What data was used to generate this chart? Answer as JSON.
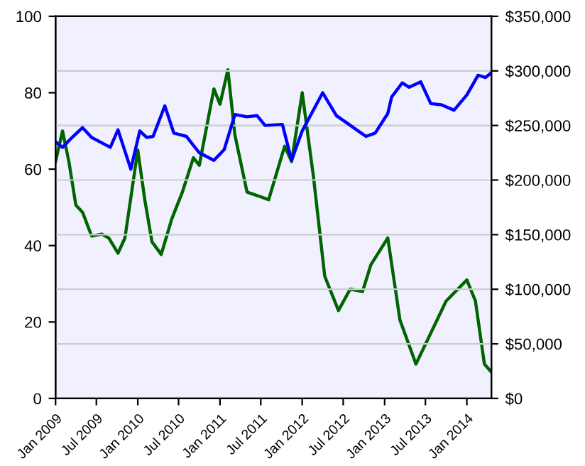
{
  "chart_data": {
    "type": "line",
    "grid": "y2",
    "marker": "none",
    "line_style": "solid",
    "xlim": [
      "2009-01-01",
      "2014-04-20"
    ],
    "xticks": [
      {
        "value": "2009-01-01",
        "label": "Jan 2009"
      },
      {
        "value": "2009-07-01",
        "label": "Jul 2009"
      },
      {
        "value": "2010-01-01",
        "label": "Jan 2010"
      },
      {
        "value": "2010-07-01",
        "label": "Jul 2010"
      },
      {
        "value": "2011-01-01",
        "label": "Jan 2011"
      },
      {
        "value": "2011-07-01",
        "label": "Jul 2011"
      },
      {
        "value": "2012-01-01",
        "label": "Jan 2012"
      },
      {
        "value": "2012-07-01",
        "label": "Jul 2012"
      },
      {
        "value": "2013-01-01",
        "label": "Jan 2013"
      },
      {
        "value": "2013-07-01",
        "label": "Jul 2013"
      },
      {
        "value": "2014-01-01",
        "label": "Jan 2014"
      }
    ],
    "ylim": [
      0,
      100
    ],
    "yticks": [
      0,
      20,
      40,
      60,
      80,
      100
    ],
    "y2lim": [
      0,
      350000
    ],
    "y2ticks": [
      {
        "value": 0,
        "label": "$0"
      },
      {
        "value": 50000,
        "label": "$50,000"
      },
      {
        "value": 100000,
        "label": "$100,000"
      },
      {
        "value": 150000,
        "label": "$150,000"
      },
      {
        "value": 200000,
        "label": "$200,000"
      },
      {
        "value": 250000,
        "label": "$250,000"
      },
      {
        "value": 300000,
        "label": "$300,000"
      },
      {
        "value": 350000,
        "label": "$350,000"
      }
    ],
    "series": [
      {
        "color": "#006400",
        "x": [
          "2009-01-01",
          "2009-02-01",
          "2009-03-01",
          "2009-04-01",
          "2009-05-01",
          "2009-06-10",
          "2009-07-25",
          "2009-08-25",
          "2009-10-05",
          "2009-11-05",
          "2010-01-01",
          "2010-02-01",
          "2010-03-05",
          "2010-04-15",
          "2010-06-01",
          "2010-07-18",
          "2010-09-05",
          "2010-10-01",
          "2010-12-05",
          "2011-01-01",
          "2011-02-05",
          "2011-03-08",
          "2011-05-01",
          "2011-06-20",
          "2011-08-05",
          "2011-10-15",
          "2011-11-15",
          "2012-01-01",
          "2012-02-20",
          "2012-04-10",
          "2012-06-10",
          "2012-08-01",
          "2012-09-25",
          "2012-11-01",
          "2013-01-15",
          "2013-03-10",
          "2013-05-20",
          "2013-07-12",
          "2013-10-01",
          "2014-01-01",
          "2014-02-08",
          "2014-03-20",
          "2014-04-18"
        ],
        "values": [
          62,
          70,
          62,
          50.6,
          48.7,
          42.5,
          43,
          42,
          38,
          42,
          65,
          52,
          41,
          37.7,
          47,
          54,
          63,
          61,
          81,
          77,
          86,
          69,
          54,
          53,
          52,
          66,
          62,
          80,
          58,
          32,
          23,
          28.6,
          28,
          35,
          42,
          20.5,
          9,
          15.5,
          25.5,
          31,
          25.5,
          9,
          7
        ]
      },
      {
        "color": "#0000ff",
        "axis": "y2",
        "x": [
          "2009-01-01",
          "2009-02-01",
          "2009-03-15",
          "2009-05-01",
          "2009-06-10",
          "2009-09-01",
          "2009-10-05",
          "2009-12-01",
          "2010-01-10",
          "2010-02-10",
          "2010-03-10",
          "2010-05-01",
          "2010-06-10",
          "2010-08-05",
          "2010-10-01",
          "2010-12-05",
          "2011-01-20",
          "2011-03-08",
          "2011-05-01",
          "2011-06-15",
          "2011-07-20",
          "2011-10-05",
          "2011-11-15",
          "2012-01-01",
          "2012-04-01",
          "2012-06-01",
          "2012-07-20",
          "2012-10-10",
          "2012-11-20",
          "2013-01-15",
          "2013-02-01",
          "2013-03-20",
          "2013-04-20",
          "2013-06-10",
          "2013-07-25",
          "2013-09-10",
          "2013-11-05",
          "2014-01-01",
          "2014-02-20",
          "2014-03-25",
          "2014-04-18"
        ],
        "values": [
          235000,
          230000,
          239000,
          248000,
          239000,
          230000,
          246000,
          210000,
          245000,
          239000,
          240000,
          268000,
          243000,
          240000,
          225000,
          218000,
          228000,
          260000,
          258000,
          259000,
          250000,
          251000,
          218000,
          245000,
          280000,
          259000,
          252000,
          240000,
          243000,
          261000,
          276000,
          289000,
          285000,
          290000,
          270000,
          269000,
          264000,
          278000,
          296000,
          294000,
          298000
        ]
      }
    ]
  }
}
